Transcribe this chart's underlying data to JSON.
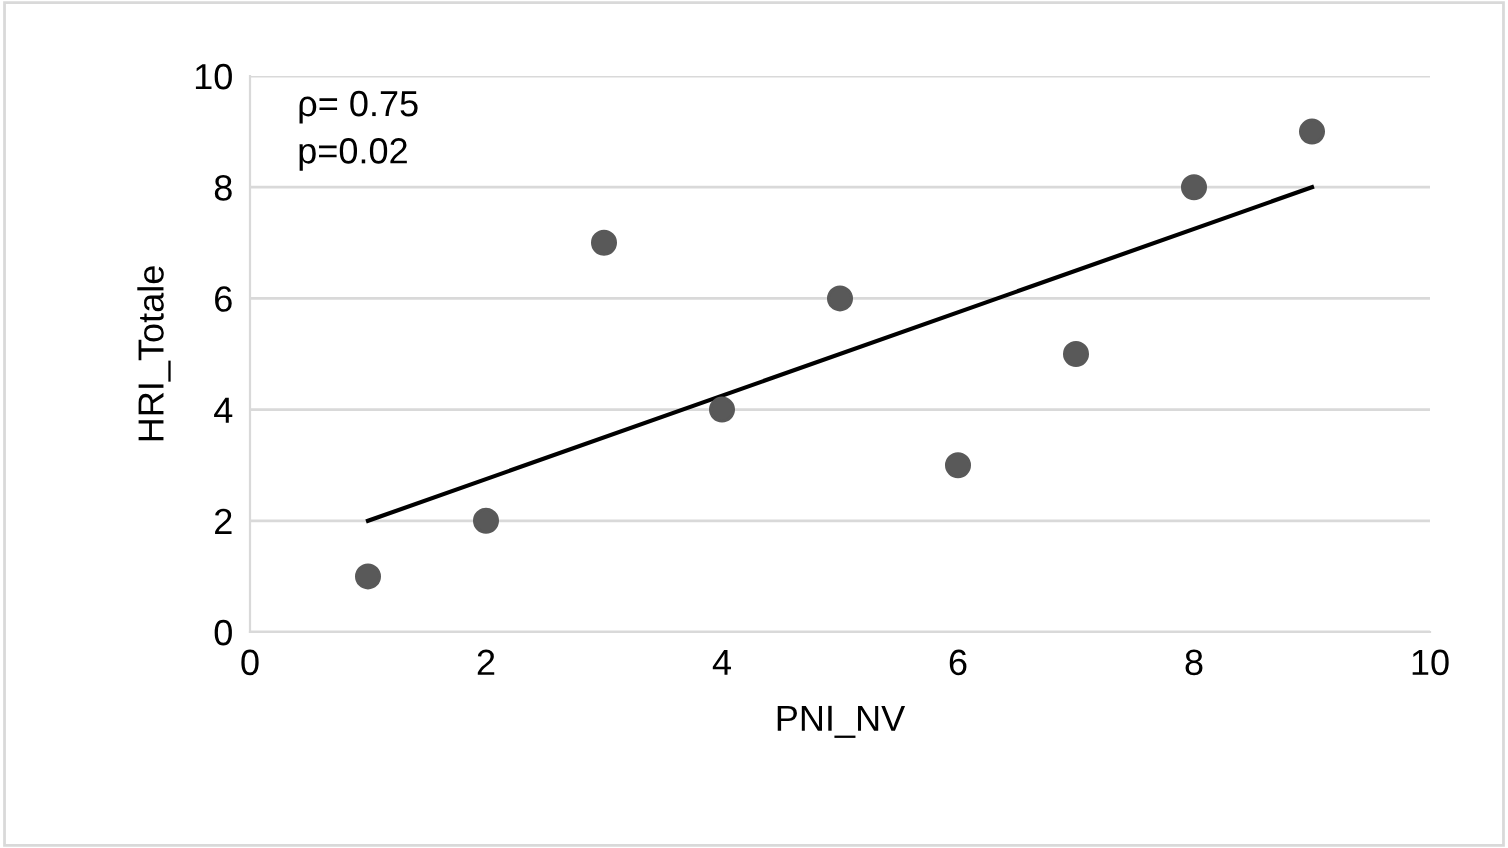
{
  "chart_data": {
    "type": "scatter",
    "xlabel": "PNI_NV",
    "ylabel": "HRI_Totale",
    "series": [
      {
        "color": "#595959",
        "marker": "circle",
        "x": [
          1,
          2,
          3,
          4,
          5,
          6,
          7,
          8,
          9
        ],
        "values": [
          1,
          2,
          7,
          4,
          6,
          3,
          5,
          8,
          9
        ]
      },
      {
        "type": "line",
        "color": "#000000",
        "line_style": "solid",
        "x": [
          1,
          9
        ],
        "values": [
          2,
          8
        ]
      }
    ],
    "annotations": [
      "ρ= 0.75",
      "p=0.02"
    ],
    "xlim": [
      0,
      10
    ],
    "xticks": [
      0,
      2,
      4,
      6,
      8,
      10
    ],
    "ylim": [
      0,
      10
    ],
    "yticks": [
      0,
      2,
      4,
      6,
      8,
      10
    ],
    "grid": "y",
    "legend": false
  }
}
